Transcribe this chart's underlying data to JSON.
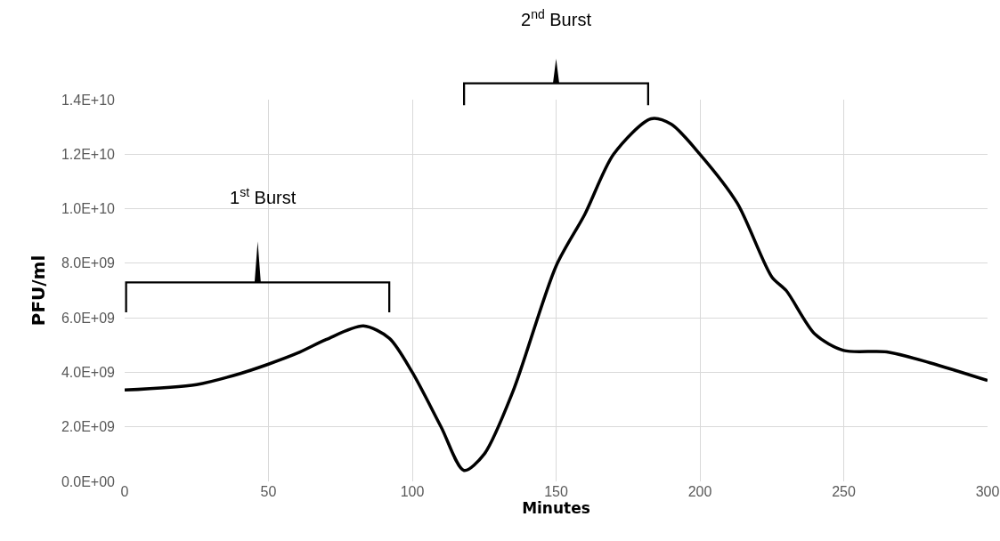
{
  "chart_data": {
    "type": "line",
    "xlabel": "Minutes",
    "ylabel": "PFU/ml",
    "annotations": [
      "1$^{st}$ Burst",
      "2$^{nd}$ Burst"
    ],
    "xlim": [
      0,
      300
    ],
    "xticks": [
      0,
      50,
      100,
      150,
      200,
      250,
      300
    ],
    "ylim": [
      0,
      14000000000
    ],
    "yticks": [
      {
        "value": 0,
        "label": "0.0E+00"
      },
      {
        "value": 2000000000,
        "label": "2.0E+09"
      },
      {
        "value": 4000000000,
        "label": "4.0E+09"
      },
      {
        "value": 6000000000,
        "label": "6.0E+09"
      },
      {
        "value": 8000000000,
        "label": "8.0E+09"
      },
      {
        "value": 10000000000,
        "label": "1.0E+10"
      },
      {
        "value": 12000000000,
        "label": "1.2E+10"
      },
      {
        "value": 14000000000,
        "label": "1.4E+10"
      }
    ],
    "grid": true,
    "marker": "none",
    "line_style": "solid",
    "x": [
      0,
      25,
      40,
      50,
      60,
      70,
      83,
      92,
      100,
      110,
      118,
      125,
      135,
      150,
      160,
      170,
      183,
      190,
      200,
      213,
      225,
      230,
      240,
      250,
      265,
      280,
      300
    ],
    "series": [
      {
        "color": "#000000",
        "values": [
          3350000000,
          3550000000,
          3950000000,
          4300000000,
          4700000000,
          5200000000,
          5700000000,
          5250000000,
          4000000000,
          2000000000,
          400000000,
          1000000000,
          3300000000,
          7900000000,
          9800000000,
          12000000000,
          13300000000,
          13100000000,
          12000000000,
          10200000000,
          7500000000,
          7000000000,
          5400000000,
          4800000000,
          4750000000,
          4350000000,
          3700000000
        ]
      }
    ]
  }
}
